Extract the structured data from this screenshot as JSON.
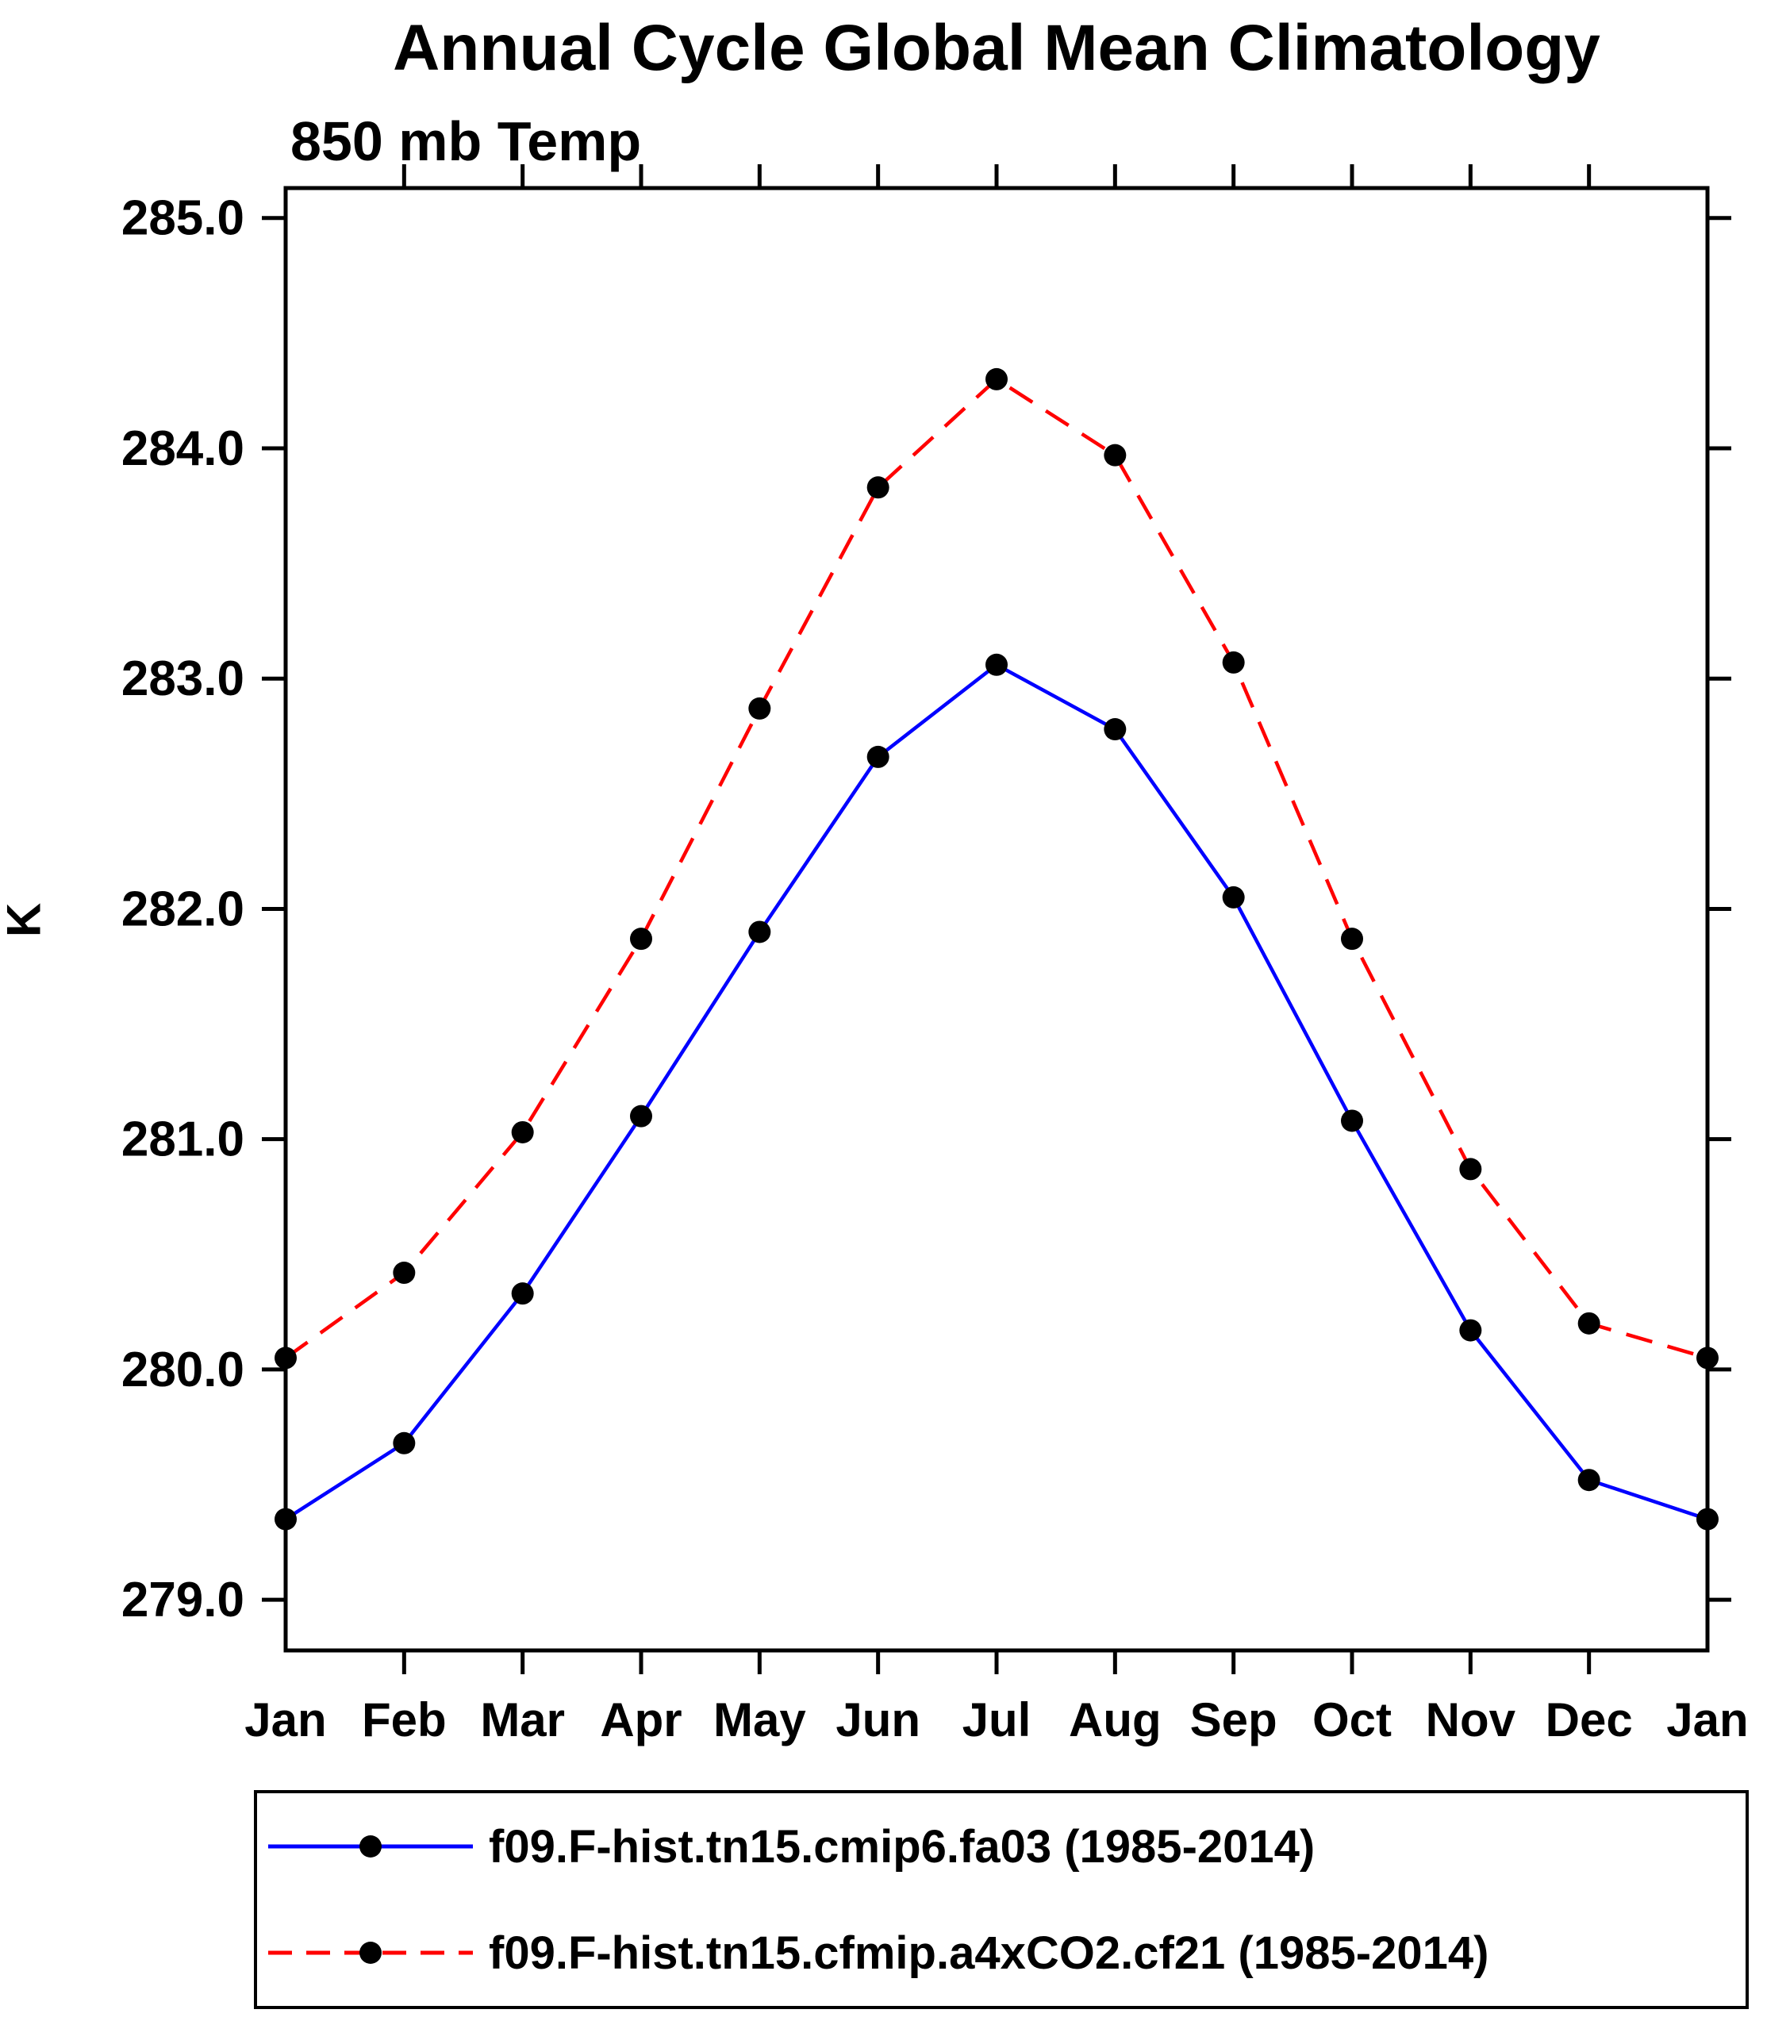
{
  "chart_data": {
    "type": "line",
    "title": "Annual Cycle Global Mean Climatology",
    "subtitle": "850 mb Temp",
    "ylabel": "K",
    "categories": [
      "Jan",
      "Feb",
      "Mar",
      "Apr",
      "May",
      "Jun",
      "Jul",
      "Aug",
      "Sep",
      "Oct",
      "Nov",
      "Dec",
      "Jan"
    ],
    "yticks": [
      279.0,
      280.0,
      281.0,
      282.0,
      283.0,
      284.0,
      285.0
    ],
    "ylim": [
      278.78,
      285.13
    ],
    "grid": false,
    "legend_position": "bottom",
    "axis_color": "#000000",
    "series": [
      {
        "name": "f09.F-hist.tn15.cmip6.fa03 (1985-2014)",
        "color": "#0000ff",
        "style": "solid",
        "marker_color": "#000000",
        "values": [
          279.35,
          279.68,
          280.33,
          281.1,
          281.9,
          282.66,
          283.06,
          282.78,
          282.05,
          281.08,
          280.17,
          279.52,
          279.35
        ]
      },
      {
        "name": "f09.F-hist.tn15.cfmip.a4xCO2.cf21 (1985-2014)",
        "color": "#ff0000",
        "style": "dashed",
        "marker_color": "#000000",
        "values": [
          280.05,
          280.42,
          281.03,
          281.87,
          282.87,
          283.83,
          284.3,
          283.97,
          283.07,
          281.87,
          280.87,
          280.2,
          280.05
        ]
      }
    ]
  }
}
